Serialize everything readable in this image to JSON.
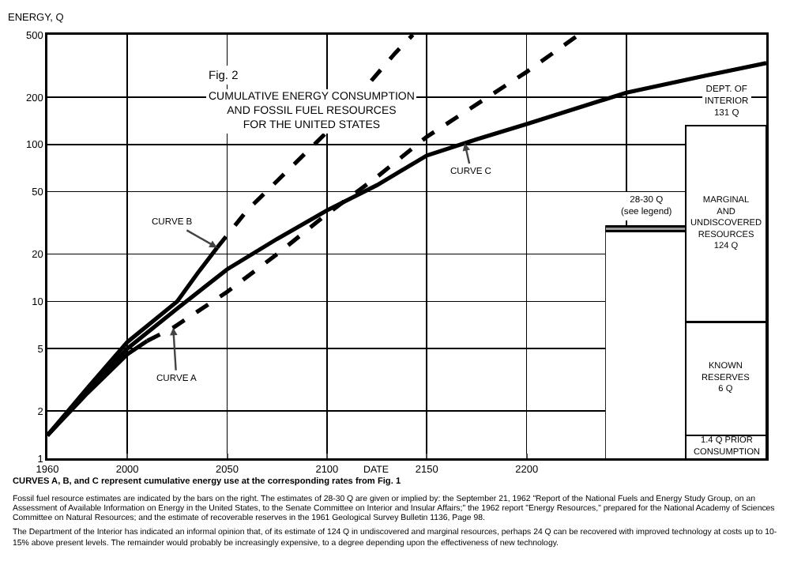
{
  "chart_data": [
    {
      "type": "line",
      "title": "Fig. 2",
      "subtitle": "CUMULATIVE ENERGY CONSUMPTION\nAND FOSSIL FUEL RESOURCES\nFOR THE UNITED STATES",
      "xlabel": "DATE",
      "ylabel": "ENERGY, Q",
      "log": "y",
      "grid": true,
      "marker": "none",
      "xlim": [
        1960,
        2320
      ],
      "xticks": [
        1960,
        2000,
        2050,
        2100,
        2150,
        2200,
        {
          "value": 2250,
          "label": null
        }
      ],
      "ylim": [
        1,
        500
      ],
      "yticks": [
        1,
        2,
        5,
        10,
        20,
        50,
        100,
        200,
        500
      ],
      "series": [
        {
          "type": "line",
          "x": [
            1960,
            1980,
            2000,
            2025,
            2050,
            2075,
            2100,
            2125,
            2150,
            2175,
            2200,
            2250,
            2290,
            2320
          ],
          "values": [
            1.4,
            2.7,
            5,
            9,
            16,
            25,
            38,
            55,
            85,
            108,
            135,
            214,
            275,
            330
          ],
          "color": "#000000",
          "line_style": "solid"
        },
        {
          "type": "line",
          "x": [
            1960,
            1980,
            2000,
            2025,
            2035,
            2045
          ],
          "values": [
            1.4,
            2.8,
            5.5,
            10,
            15,
            22
          ],
          "color": "#000000",
          "line_style": "solid"
        },
        {
          "type": "line",
          "x": [
            2045,
            2060,
            2100,
            2134,
            2143
          ],
          "values": [
            22,
            38,
            120,
            380,
            500
          ],
          "color": "#000000",
          "line_style": "dashed"
        },
        {
          "type": "line",
          "x": [
            1960,
            1980,
            2000,
            2010
          ],
          "values": [
            1.4,
            2.6,
            4.6,
            5.6
          ],
          "color": "#000000",
          "line_style": "solid"
        },
        {
          "type": "line",
          "x": [
            2010,
            2023,
            2050,
            2075,
            2100,
            2125,
            2150,
            2200,
            2226
          ],
          "values": [
            5.6,
            6.8,
            11.5,
            20,
            36,
            62,
            112,
            290,
            500
          ],
          "color": "#000000",
          "line_style": "dashed"
        }
      ],
      "annotations": [
        {
          "text": "CURVE B",
          "x": 2045,
          "y": 22
        },
        {
          "text": "CURVE A",
          "x": 2023,
          "y": 6.8
        },
        {
          "text": "CURVE C",
          "x": 2169,
          "y": 102
        },
        "CURVES A, B, and C represent cumulative energy use at the corresponding rates from Fig. 1",
        "Fossil fuel resource estimates are indicated by the bars on the right.  The estimates of 28-30 Q are given or implied by: the September 21, 1962 \"Report of the National Fuels and Energy Study Group, on an Assessment of Available Information on Energy in the United States, to the Senate Committee on Interior and Insular Affairs;\" the 1962 report \"Energy Resources,\" prepared for the National Academy of Sciences Committee on Natural Resources; and the estimate of recoverable reserves in the 1961 Geological Survey Bulletin 1136, Page 98.",
        "The Department of the Interior has indicated an informal opinion that, of its estimate of 124 Q in undiscovered and marginal resources, perhaps 24 Q can be recovered with improved technology at costs up to 10-15% above present levels.  The remainder would probably be increasingly expensive, to a degree depending upon the effectiveness of new technology."
      ]
    },
    {
      "type": "bar",
      "categories": [
        null,
        null
      ],
      "stacked": true,
      "log": "y",
      "ylim": [
        1,
        500
      ],
      "tick_labels": false,
      "series": [
        {
          "values": [
            28,
            1.4
          ],
          "color": "#ffffff",
          "value_labels": [
            null,
            "1.4 Q PRIOR\nCONSUMPTION"
          ]
        },
        {
          "values": [
            2,
            6
          ],
          "colors": [
            "#999999",
            "#ffffff"
          ],
          "value_labels": [
            null,
            "KNOWN\nRESERVES\n6 Q"
          ]
        },
        {
          "values": [
            null,
            124
          ],
          "color": "#ffffff",
          "value_labels": [
            null,
            "MARGINAL\nAND\nUNDISCOVERED\nRESOURCES\n124 Q"
          ]
        }
      ],
      "totals": [
        "28-30 Q\n(see legend)",
        "DEPT. OF\nINTERIOR\n131 Q"
      ]
    }
  ]
}
